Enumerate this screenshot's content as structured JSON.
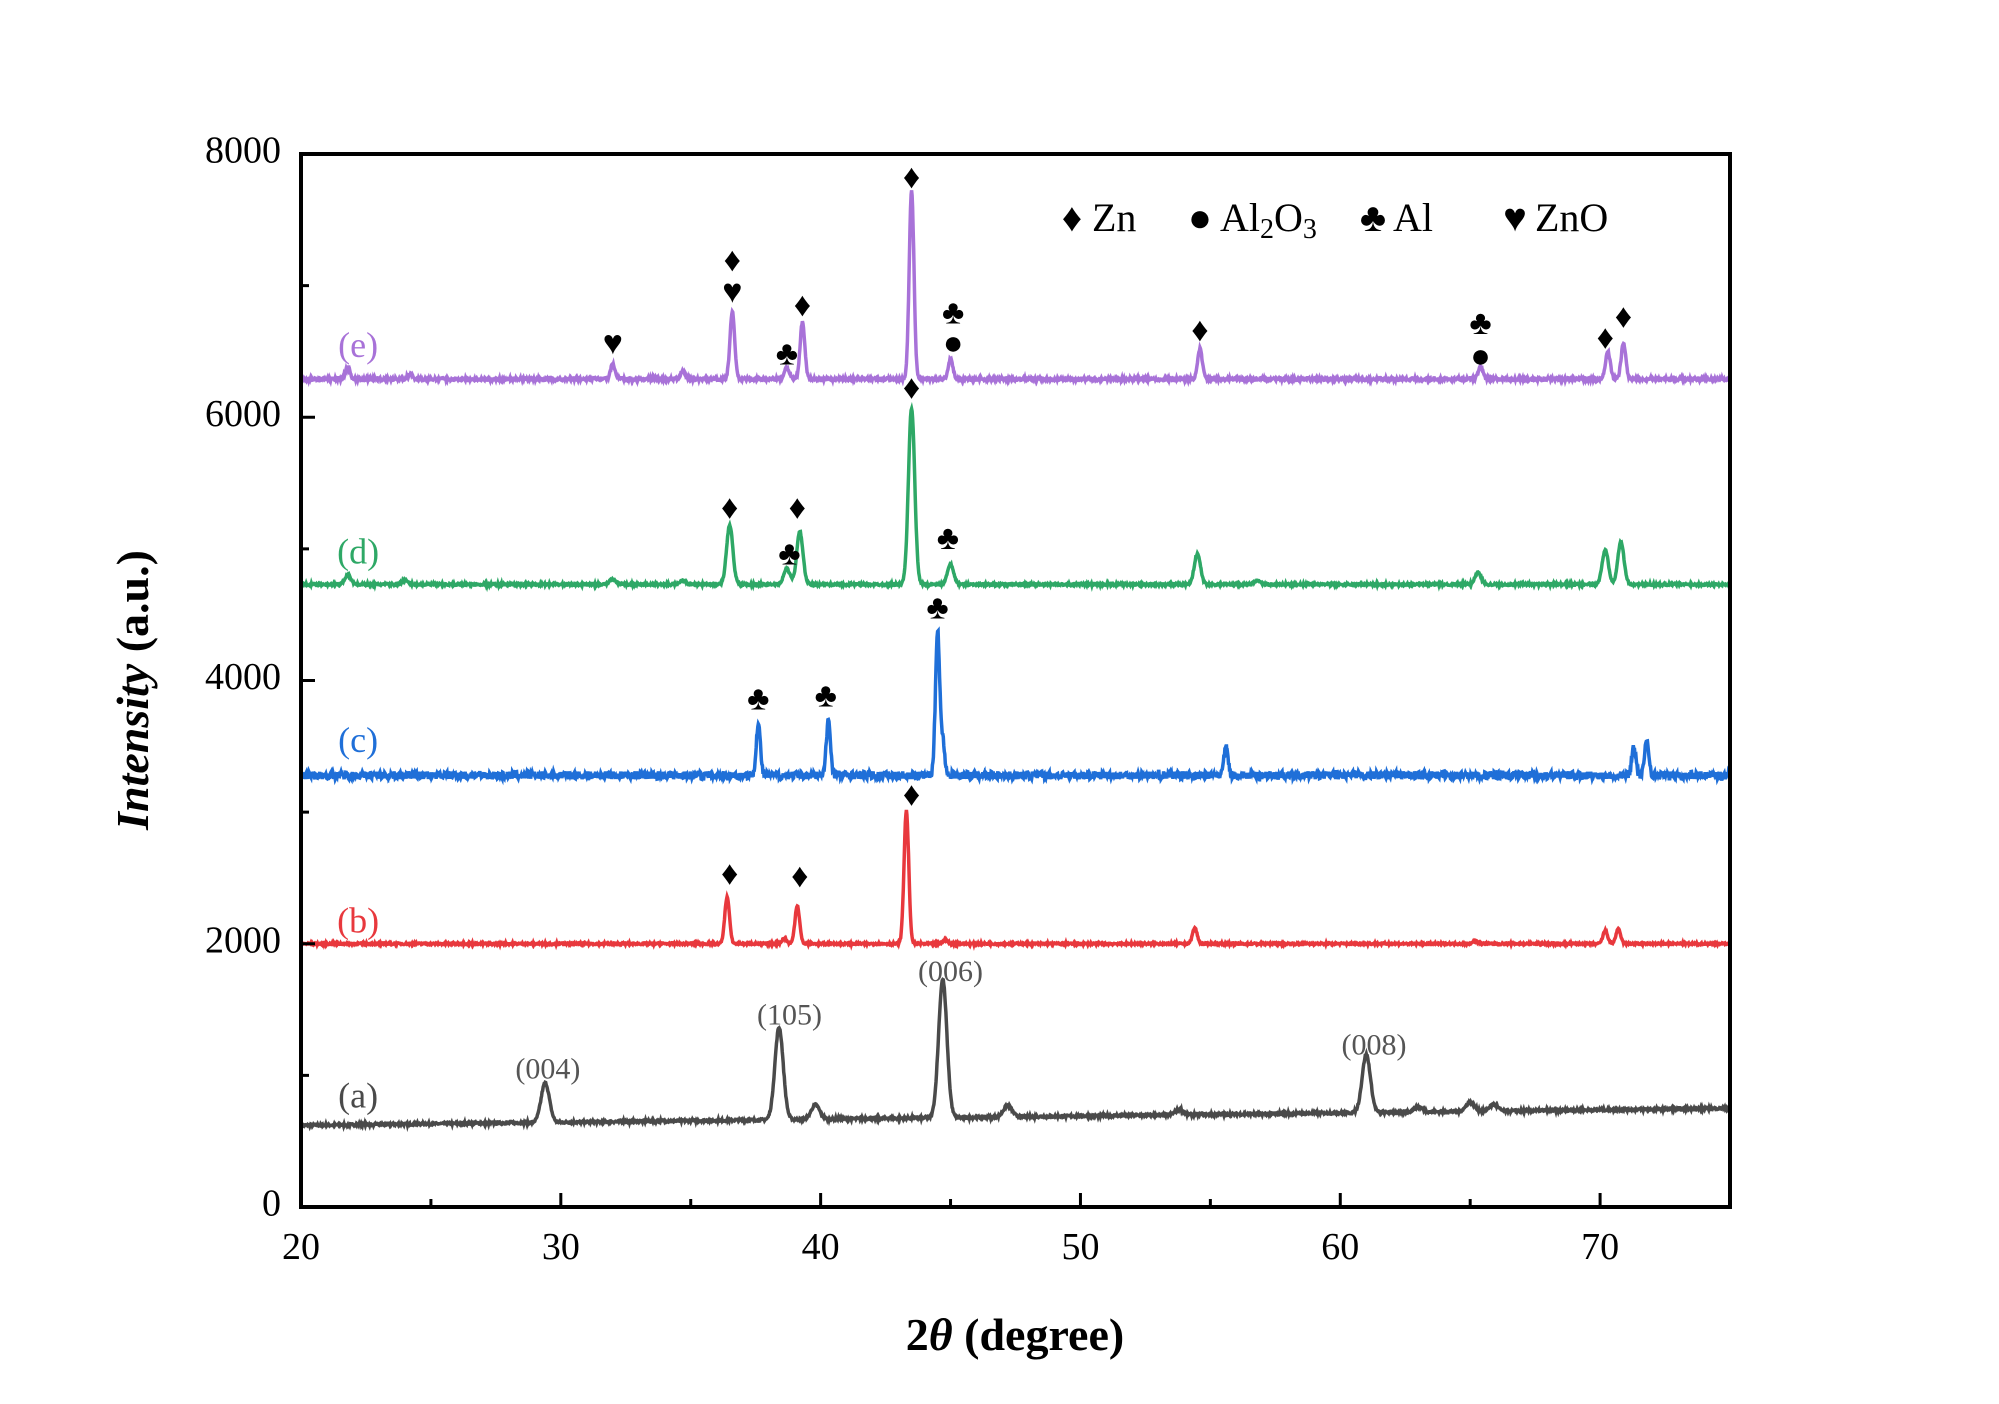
{
  "chart_data": {
    "type": "line",
    "xlabel_prefix": "2",
    "xlabel_symbol": "θ",
    "xlabel_suffix": " (degree)",
    "ylabel_italic": "Intensity",
    "ylabel_suffix": " (a.u.)",
    "xlim": [
      20,
      75
    ],
    "ylim": [
      0,
      8000
    ],
    "xticks": [
      20,
      30,
      40,
      50,
      60,
      70
    ],
    "yticks": [
      0,
      2000,
      4000,
      6000,
      8000
    ],
    "grid": false,
    "legend_placement": "top-right",
    "legend": [
      {
        "symbol": "♦",
        "icon": "diamond",
        "text": "Zn"
      },
      {
        "symbol": "●",
        "icon": "circle",
        "text": "Al",
        "sub1": "2",
        "mid": "O",
        "sub2": "3"
      },
      {
        "symbol": "♣",
        "icon": "club",
        "text": "Al"
      },
      {
        "symbol": "♥",
        "icon": "heart",
        "text": "ZnO"
      }
    ],
    "series": [
      {
        "label": "(a)",
        "color": "#4a4a4a",
        "label_pos": [
          22.2,
          820
        ],
        "baseline": [
          620,
          750
        ],
        "peaks": [
          [
            29.4,
            300
          ],
          [
            38.4,
            700
          ],
          [
            39.8,
            110
          ],
          [
            44.7,
            1050
          ],
          [
            47.2,
            90
          ],
          [
            53.8,
            40
          ],
          [
            61.0,
            440
          ],
          [
            63.0,
            40
          ],
          [
            65.0,
            70
          ],
          [
            65.9,
            50
          ]
        ]
      },
      {
        "label": "(b)",
        "color": "#e8383d",
        "label_pos": [
          22.2,
          2150
        ],
        "baseline": [
          2000,
          2000
        ],
        "peaks": [
          [
            36.4,
            355
          ],
          [
            38.6,
            40
          ],
          [
            39.1,
            290
          ],
          [
            43.3,
            1010
          ],
          [
            44.8,
            30
          ],
          [
            54.4,
            120
          ],
          [
            65.2,
            20
          ],
          [
            70.2,
            100
          ],
          [
            70.7,
            110
          ]
        ]
      },
      {
        "label": "(c)",
        "color": "#1f6fd8",
        "label_pos": [
          22.2,
          3520
        ],
        "baseline": [
          3280,
          3280
        ],
        "peaks": [
          [
            37.6,
            390
          ],
          [
            40.3,
            420
          ],
          [
            44.5,
            1100
          ],
          [
            44.7,
            250
          ],
          [
            55.6,
            210
          ],
          [
            71.3,
            220
          ],
          [
            71.8,
            270
          ]
        ]
      },
      {
        "label": "(d)",
        "color": "#2ea866",
        "label_pos": [
          22.2,
          4950
        ],
        "baseline": [
          4730,
          4730
        ],
        "peaks": [
          [
            21.8,
            70
          ],
          [
            24.0,
            30
          ],
          [
            32.0,
            40
          ],
          [
            34.7,
            30
          ],
          [
            36.5,
            450
          ],
          [
            38.7,
            120
          ],
          [
            39.2,
            400
          ],
          [
            43.5,
            1340
          ],
          [
            45.0,
            150
          ],
          [
            54.5,
            230
          ],
          [
            56.8,
            30
          ],
          [
            65.3,
            90
          ],
          [
            70.2,
            260
          ],
          [
            70.8,
            320
          ]
        ]
      },
      {
        "label": "(e)",
        "color": "#a872d8",
        "label_pos": [
          22.2,
          6520
        ],
        "baseline": [
          6290,
          6290
        ],
        "peaks": [
          [
            21.8,
            90
          ],
          [
            24.2,
            40
          ],
          [
            32.0,
            110
          ],
          [
            34.7,
            60
          ],
          [
            36.6,
            510
          ],
          [
            38.7,
            90
          ],
          [
            39.3,
            430
          ],
          [
            43.5,
            1440
          ],
          [
            45.0,
            150
          ],
          [
            54.6,
            230
          ],
          [
            65.4,
            100
          ],
          [
            70.3,
            210
          ],
          [
            70.9,
            270
          ]
        ]
      }
    ],
    "markers": [
      {
        "symbol": "♥",
        "x": 32.0,
        "y": 6540
      },
      {
        "symbol": "♦",
        "x": 36.6,
        "y": 7170
      },
      {
        "symbol": "♥",
        "x": 36.6,
        "y": 6930
      },
      {
        "symbol": "♣",
        "x": 38.7,
        "y": 6460
      },
      {
        "symbol": "♦",
        "x": 39.3,
        "y": 6830
      },
      {
        "symbol": "♦",
        "x": 43.5,
        "y": 7800
      },
      {
        "symbol": "♣",
        "x": 45.1,
        "y": 6770
      },
      {
        "symbol": "●",
        "x": 45.1,
        "y": 6540
      },
      {
        "symbol": "♦",
        "x": 54.6,
        "y": 6640
      },
      {
        "symbol": "♣",
        "x": 65.4,
        "y": 6690
      },
      {
        "symbol": "●",
        "x": 65.4,
        "y": 6440
      },
      {
        "symbol": "♦",
        "x": 70.2,
        "y": 6580
      },
      {
        "symbol": "♦",
        "x": 70.9,
        "y": 6740
      },
      {
        "symbol": "♦",
        "x": 36.5,
        "y": 5290
      },
      {
        "symbol": "♦",
        "x": 39.1,
        "y": 5290
      },
      {
        "symbol": "♣",
        "x": 38.8,
        "y": 4940
      },
      {
        "symbol": "♦",
        "x": 43.5,
        "y": 6200
      },
      {
        "symbol": "♣",
        "x": 44.9,
        "y": 5060
      },
      {
        "symbol": "♣",
        "x": 37.6,
        "y": 3840
      },
      {
        "symbol": "♣",
        "x": 40.2,
        "y": 3860
      },
      {
        "symbol": "♣",
        "x": 44.5,
        "y": 4530
      },
      {
        "symbol": "♦",
        "x": 36.5,
        "y": 2510
      },
      {
        "symbol": "♦",
        "x": 39.2,
        "y": 2490
      },
      {
        "symbol": "♦",
        "x": 43.5,
        "y": 3110
      }
    ],
    "annotations": [
      {
        "text": "(004)",
        "x": 29.5,
        "y": 1030
      },
      {
        "text": "(105)",
        "x": 38.8,
        "y": 1440
      },
      {
        "text": "(006)",
        "x": 45.0,
        "y": 1770
      },
      {
        "text": "(008)",
        "x": 61.3,
        "y": 1210
      }
    ]
  }
}
